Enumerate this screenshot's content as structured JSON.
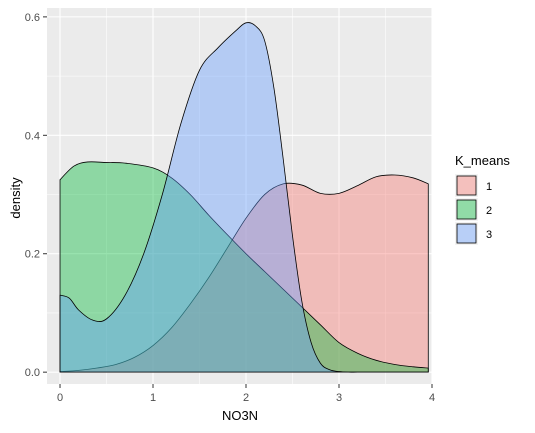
{
  "chart_data": {
    "type": "area",
    "xlabel": "NO3N",
    "ylabel": "density",
    "xlim": [
      -0.14,
      4.0
    ],
    "ylim": [
      -0.02,
      0.615
    ],
    "x_ticks": [
      "0",
      "1",
      "2",
      "3",
      "4"
    ],
    "y_ticks": [
      "0.0",
      "0.2",
      "0.4",
      "0.6"
    ],
    "grid": true,
    "legend_position": "right",
    "legend_title": "K_means",
    "series": [
      {
        "name": "1",
        "color": "#F8766D",
        "x": [
          0.0,
          0.2,
          0.4,
          0.6,
          0.8,
          1.0,
          1.2,
          1.4,
          1.6,
          1.8,
          2.0,
          2.2,
          2.4,
          2.6,
          2.8,
          3.0,
          3.2,
          3.4,
          3.6,
          3.8,
          3.96
        ],
        "y": [
          0.001,
          0.003,
          0.007,
          0.013,
          0.025,
          0.045,
          0.075,
          0.115,
          0.16,
          0.21,
          0.26,
          0.3,
          0.318,
          0.316,
          0.302,
          0.302,
          0.315,
          0.33,
          0.333,
          0.328,
          0.318
        ]
      },
      {
        "name": "2",
        "color": "#00BA38",
        "x": [
          0.0,
          0.15,
          0.3,
          0.5,
          0.7,
          1.0,
          1.2,
          1.4,
          1.6,
          1.8,
          2.0,
          2.2,
          2.4,
          2.6,
          2.8,
          3.0,
          3.2,
          3.4,
          3.6,
          3.8,
          3.96
        ],
        "y": [
          0.325,
          0.348,
          0.355,
          0.354,
          0.353,
          0.345,
          0.328,
          0.3,
          0.265,
          0.232,
          0.2,
          0.17,
          0.14,
          0.11,
          0.08,
          0.05,
          0.032,
          0.02,
          0.013,
          0.009,
          0.007
        ]
      },
      {
        "name": "3",
        "color": "#619CFF",
        "x": [
          0.0,
          0.1,
          0.2,
          0.35,
          0.5,
          0.7,
          0.9,
          1.1,
          1.3,
          1.5,
          1.7,
          1.9,
          2.0,
          2.1,
          2.2,
          2.3,
          2.4,
          2.5,
          2.6,
          2.7,
          2.8,
          2.9,
          3.0,
          3.1,
          3.2,
          3.4,
          3.6,
          3.8,
          3.96
        ],
        "y": [
          0.13,
          0.125,
          0.105,
          0.088,
          0.09,
          0.13,
          0.2,
          0.3,
          0.42,
          0.51,
          0.548,
          0.578,
          0.59,
          0.585,
          0.56,
          0.48,
          0.36,
          0.23,
          0.12,
          0.05,
          0.015,
          0.004,
          0.001,
          0.0,
          0.0,
          0.0,
          0.0,
          0.0,
          0.0
        ]
      }
    ]
  }
}
